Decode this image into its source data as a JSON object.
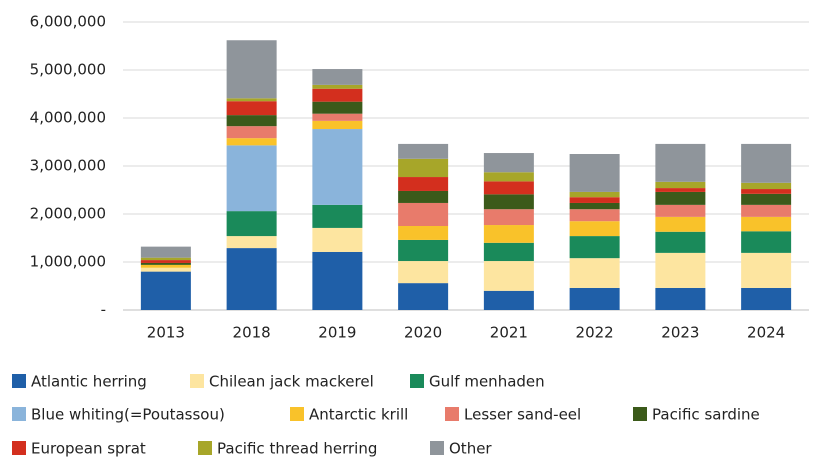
{
  "chart_data": {
    "type": "stacked_bar",
    "categories": [
      "2013",
      "2018",
      "2019",
      "2020",
      "2021",
      "2022",
      "2023",
      "2024"
    ],
    "series": [
      {
        "name": "Atlantic herring",
        "color": "#1f5fa8",
        "values": [
          800000,
          1290000,
          1210000,
          560000,
          400000,
          460000,
          460000,
          460000
        ]
      },
      {
        "name": "Chilean jack mackerel",
        "color": "#fde5a0",
        "values": [
          80000,
          250000,
          500000,
          460000,
          620000,
          620000,
          730000,
          730000
        ]
      },
      {
        "name": "Gulf menhaden",
        "color": "#1a8a5a",
        "values": [
          0,
          520000,
          480000,
          440000,
          380000,
          460000,
          440000,
          450000
        ]
      },
      {
        "name": "Blue whiting(=Poutassou)",
        "color": "#8ab4db",
        "values": [
          0,
          1370000,
          1580000,
          0,
          0,
          0,
          0,
          0
        ]
      },
      {
        "name": "Antarctic krill",
        "color": "#f9c22a",
        "values": [
          60000,
          150000,
          170000,
          290000,
          370000,
          310000,
          310000,
          300000
        ]
      },
      {
        "name": "Lesser sand-eel",
        "color": "#e87b6b",
        "values": [
          0,
          250000,
          150000,
          480000,
          330000,
          250000,
          250000,
          250000
        ]
      },
      {
        "name": "Pacific sardine",
        "color": "#3b5a1a",
        "values": [
          40000,
          230000,
          250000,
          250000,
          310000,
          130000,
          270000,
          230000
        ]
      },
      {
        "name": "European sprat",
        "color": "#d32f1e",
        "values": [
          60000,
          290000,
          270000,
          290000,
          270000,
          120000,
          80000,
          100000
        ]
      },
      {
        "name": "Pacific thread herring",
        "color": "#a7a629",
        "values": [
          50000,
          60000,
          80000,
          380000,
          190000,
          110000,
          130000,
          130000
        ]
      },
      {
        "name": "Other",
        "color": "#8f959b",
        "values": [
          230000,
          1210000,
          330000,
          310000,
          400000,
          790000,
          790000,
          810000
        ]
      }
    ],
    "ylim": [
      0,
      6000000
    ],
    "yticks": [
      {
        "value": 0,
        "label": "-"
      },
      {
        "value": 1000000,
        "label": "1,000,000"
      },
      {
        "value": 2000000,
        "label": "2,000,000"
      },
      {
        "value": 3000000,
        "label": "3,000,000"
      },
      {
        "value": 4000000,
        "label": "4,000,000"
      },
      {
        "value": 5000000,
        "label": "5,000,000"
      },
      {
        "value": 6000000,
        "label": "6,000,000"
      }
    ],
    "grid": true,
    "legend": "bottom"
  }
}
